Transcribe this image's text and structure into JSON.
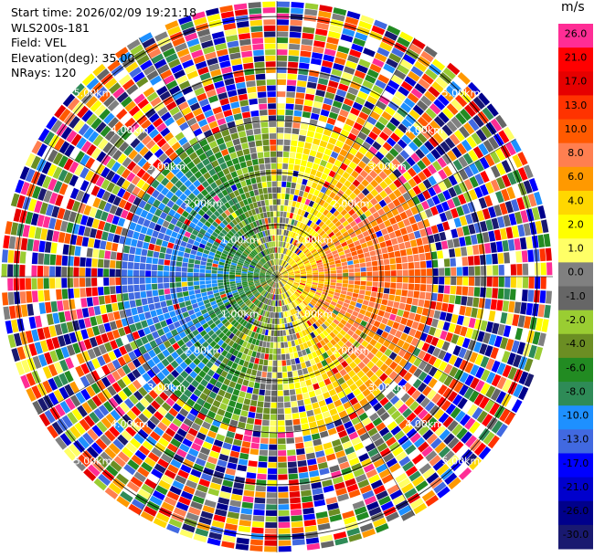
{
  "info": {
    "start_time": "Start time: 2026/02/09 19:21:18",
    "instrument": "WLS200s-181",
    "field": "Field: VEL",
    "elevation": "Elevation(deg): 35.00",
    "nrays": "NRays: 120"
  },
  "colorbar": {
    "unit": "m/s",
    "bands": [
      {
        "label": "26.0",
        "color": "#ff2d95"
      },
      {
        "label": "21.0",
        "color": "#ff0000"
      },
      {
        "label": "17.0",
        "color": "#e60000"
      },
      {
        "label": "13.0",
        "color": "#ff3300"
      },
      {
        "label": "10.0",
        "color": "#ff5a00"
      },
      {
        "label": "8.0",
        "color": "#ff7f50"
      },
      {
        "label": "6.0",
        "color": "#ff9900"
      },
      {
        "label": "4.0",
        "color": "#ffd700"
      },
      {
        "label": "2.0",
        "color": "#ffff00"
      },
      {
        "label": "1.0",
        "color": "#ffff66"
      },
      {
        "label": "0.0",
        "color": "#808080"
      },
      {
        "label": "-1.0",
        "color": "#666666"
      },
      {
        "label": "-2.0",
        "color": "#9acd32"
      },
      {
        "label": "-4.0",
        "color": "#6b8e23"
      },
      {
        "label": "-6.0",
        "color": "#228b22"
      },
      {
        "label": "-8.0",
        "color": "#2e8b57"
      },
      {
        "label": "-10.0",
        "color": "#1e90ff"
      },
      {
        "label": "-13.0",
        "color": "#4169e1"
      },
      {
        "label": "-17.0",
        "color": "#0000ff"
      },
      {
        "label": "-21.0",
        "color": "#0000cd"
      },
      {
        "label": "-26.0",
        "color": "#00008b"
      },
      {
        "label": "-30.0",
        "color": "#191970"
      }
    ]
  },
  "chart_data": {
    "type": "heatmap",
    "projection": "polar PPI",
    "range_rings_km": [
      1,
      2,
      3,
      4,
      5
    ],
    "ring_labels": [
      {
        "text": "1.00km",
        "quadrant": "NW"
      },
      {
        "text": "1.00km",
        "quadrant": "NE"
      },
      {
        "text": "1.00km",
        "quadrant": "SW"
      },
      {
        "text": "1.00km",
        "quadrant": "SE"
      },
      {
        "text": "2.00km",
        "quadrant": "NW"
      },
      {
        "text": "2.00km",
        "quadrant": "NE"
      },
      {
        "text": "2.00km",
        "quadrant": "SW"
      },
      {
        "text": "2.00km",
        "quadrant": "SE"
      },
      {
        "text": "3.00km",
        "quadrant": "NW"
      },
      {
        "text": "3.00km",
        "quadrant": "NE"
      },
      {
        "text": "3.00km",
        "quadrant": "SW"
      },
      {
        "text": "3.00km",
        "quadrant": "SE"
      },
      {
        "text": "4.00km",
        "quadrant": "NW"
      },
      {
        "text": "4.00km",
        "quadrant": "NE"
      },
      {
        "text": "4.00km",
        "quadrant": "SW"
      },
      {
        "text": "4.00km",
        "quadrant": "SE"
      },
      {
        "text": "5.00km",
        "quadrant": "NW"
      },
      {
        "text": "5.00km",
        "quadrant": "NE"
      },
      {
        "text": "5.00km",
        "quadrant": "SW"
      },
      {
        "text": "5.00km",
        "quadrant": "SE"
      }
    ],
    "max_range_km": 5.3,
    "n_rays": 120,
    "field": "VEL",
    "velocity_pattern": {
      "east_half": "positive (yellow/orange/red)",
      "west_half": "negative (green/blue)",
      "outer_ring_beyond_km": 3.0,
      "outer_ring": "noisy mixed colors"
    }
  }
}
